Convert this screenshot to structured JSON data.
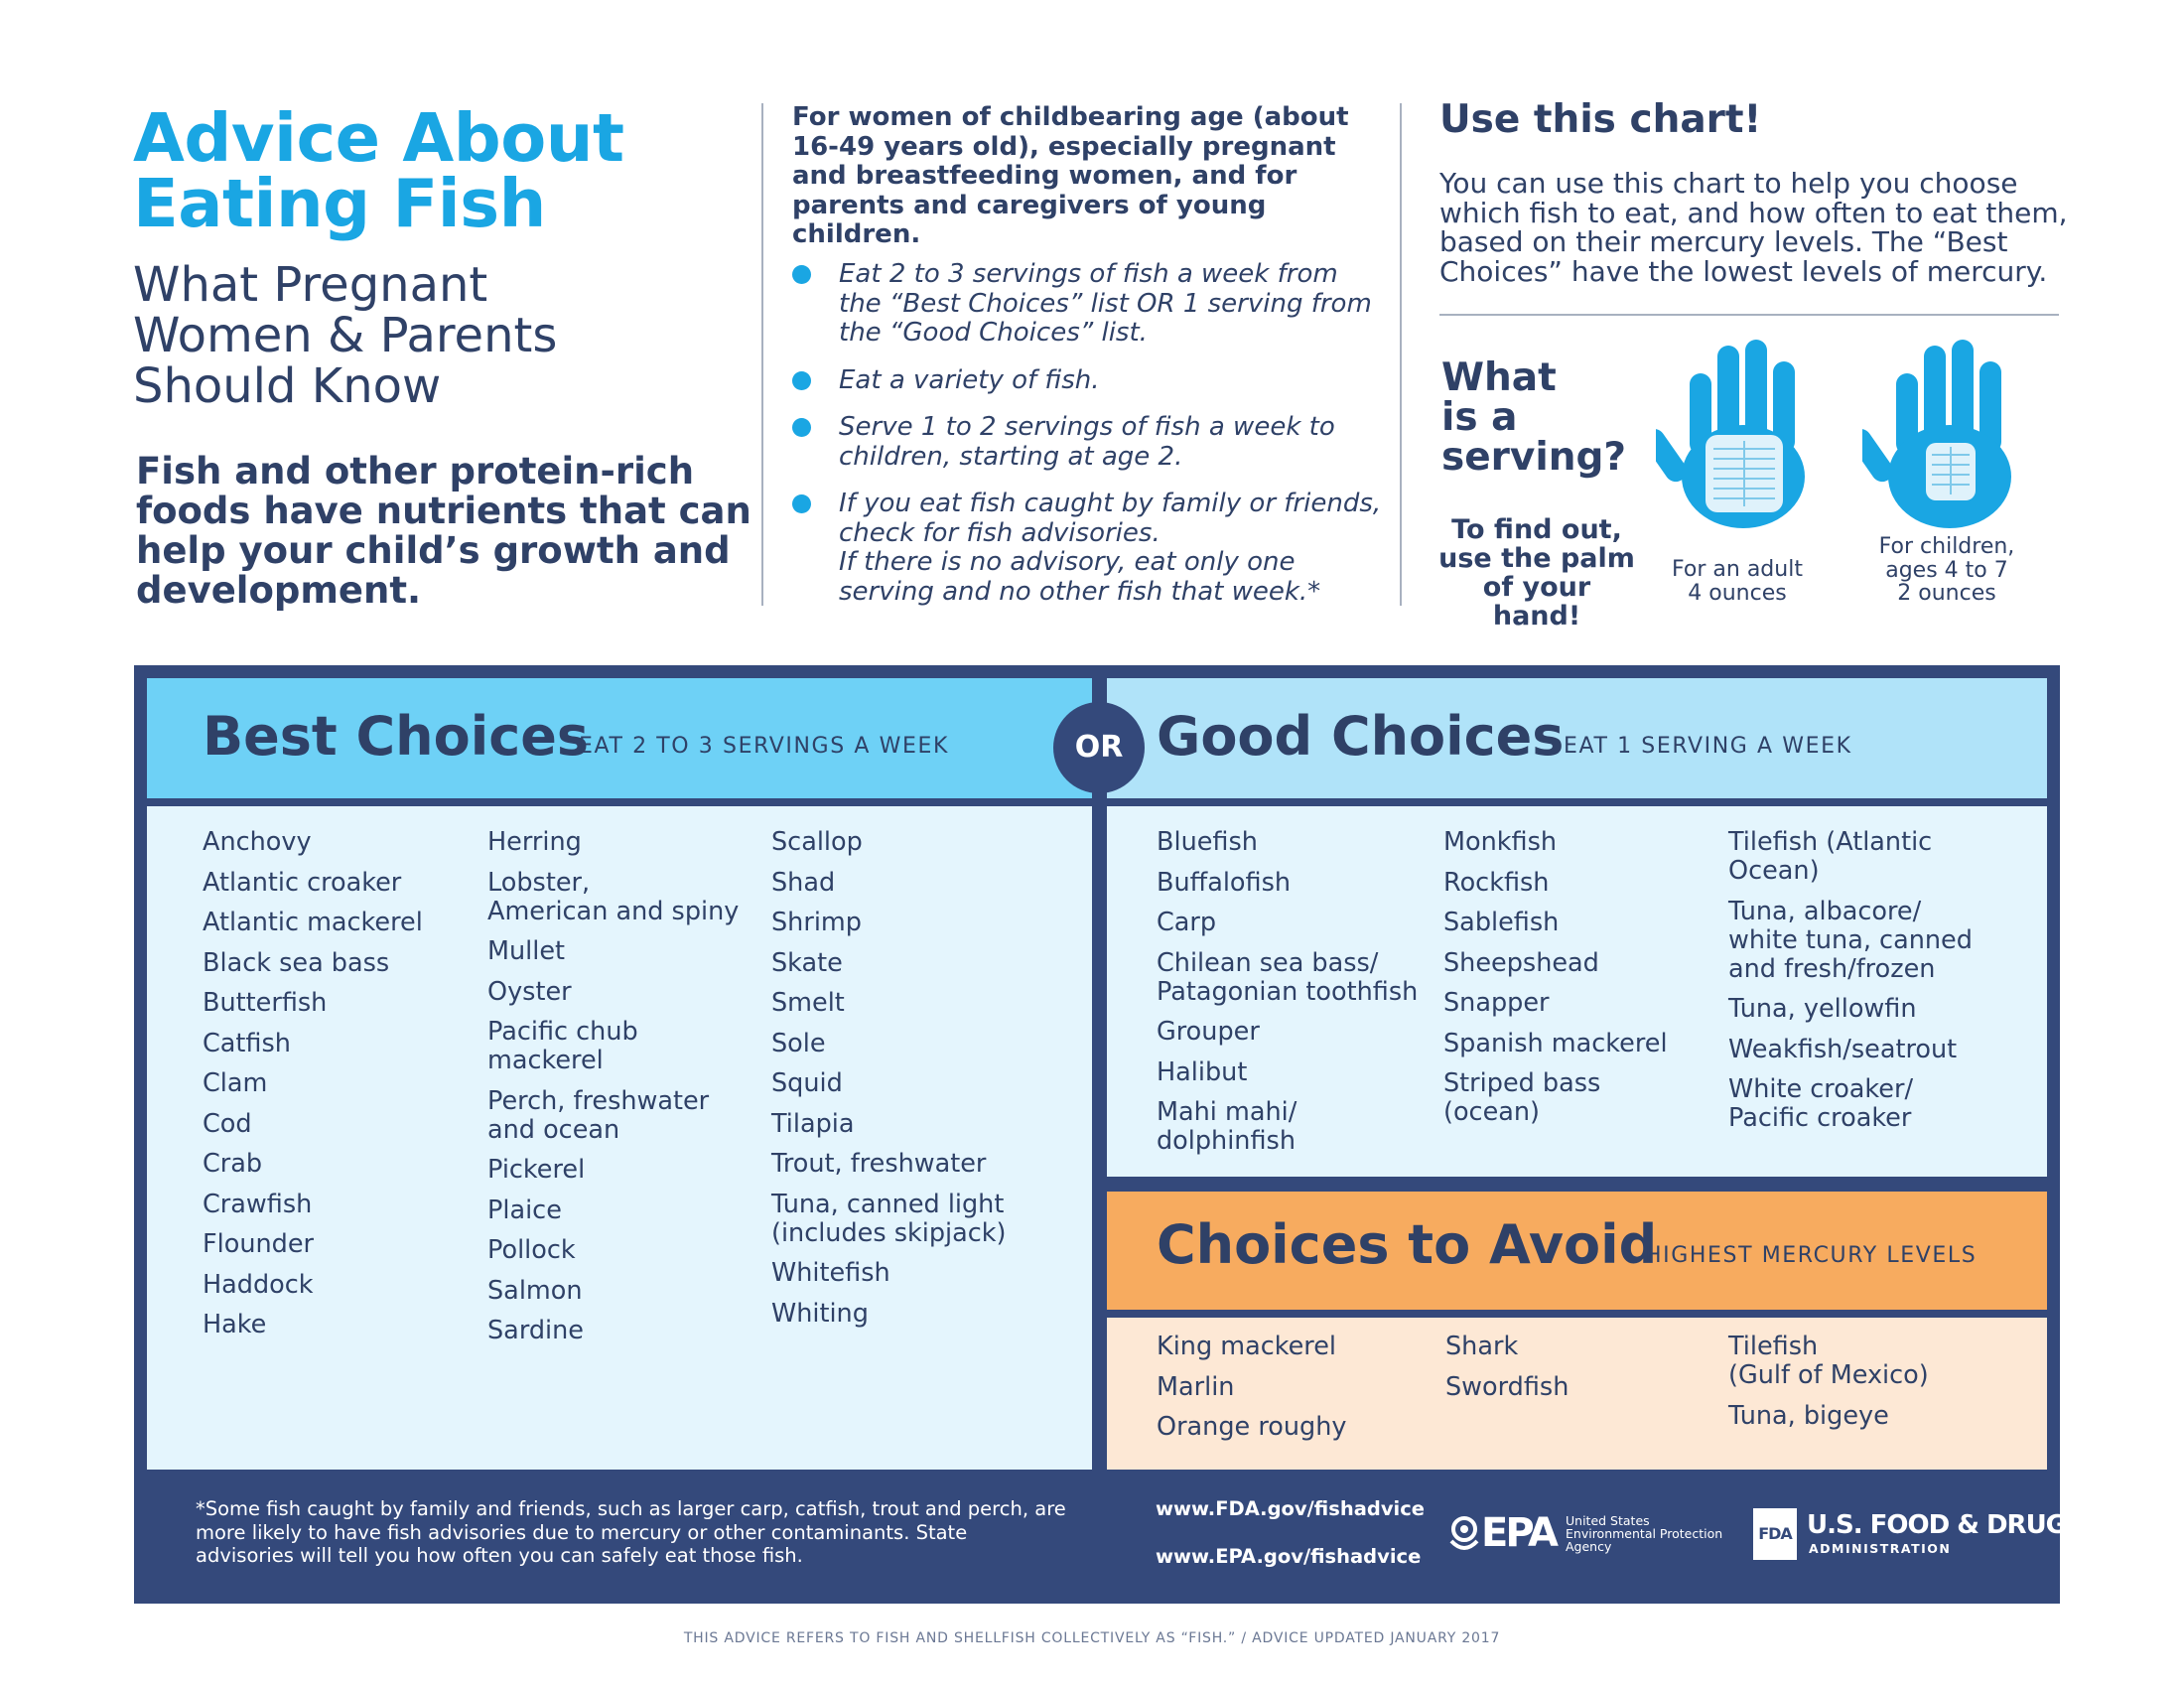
{
  "header": {
    "title_lines": [
      "Advice About",
      "Eating Fish"
    ],
    "subtitle_lines": [
      "What Pregnant",
      "Women & Parents",
      "Should Know"
    ],
    "intro": "Fish and other protein-rich foods have nutrients that can help your child’s growth and development."
  },
  "audience": {
    "heading": "For women of childbearing age (about 16-49 years old), especially pregnant and breastfeeding women, and for parents and caregivers of young children.",
    "bullets": [
      "Eat 2 to 3 servings of fish a week from the “Best Choices” list OR 1 serving from the “Good Choices” list.",
      "Eat a variety of fish.",
      "Serve 1 to 2 servings of fish a week to children, starting at age 2."
    ],
    "bullet4_line1": "If you eat fish caught by family or friends, check for fish advisories.",
    "bullet4_line2": "If there is no advisory, eat only one serving and no other fish that week.*"
  },
  "chart_help": {
    "heading": "Use this chart!",
    "text": "You can use this chart to help you choose which fish to eat, and how often to eat them, based on their mercury levels. The “Best Choices” have the lowest levels of mercury.",
    "serving_question": [
      "What",
      "is a",
      "serving?"
    ],
    "palm_text": [
      "To find out,",
      "use the palm",
      "of your hand!"
    ],
    "adult_caption": [
      "For an adult",
      "4 ounces"
    ],
    "child_caption": [
      "For children,",
      "ages 4 to 7",
      "2 ounces"
    ],
    "hand_color": "#1aa6e3"
  },
  "best": {
    "title": "Best Choices",
    "subtitle": "EAT 2 TO 3 SERVINGS A WEEK",
    "color": "#6ed1f6",
    "columns": [
      [
        "Anchovy",
        "Atlantic croaker",
        "Atlantic mackerel",
        "Black sea bass",
        "Butterfish",
        "Catfish",
        "Clam",
        "Cod",
        "Crab",
        "Crawfish",
        "Flounder",
        "Haddock",
        "Hake"
      ],
      [
        "Herring",
        "Lobster,\nAmerican and spiny",
        "Mullet",
        "Oyster",
        "Pacific chub\nmackerel",
        "Perch, freshwater\nand ocean",
        "Pickerel",
        "Plaice",
        "Pollock",
        "Salmon",
        "Sardine"
      ],
      [
        "Scallop",
        "Shad",
        "Shrimp",
        "Skate",
        "Smelt",
        "Sole",
        "Squid",
        "Tilapia",
        "Trout, freshwater",
        "Tuna, canned light\n(includes skipjack)",
        "Whitefish",
        "Whiting"
      ]
    ]
  },
  "or_label": "OR",
  "good": {
    "title": "Good Choices",
    "subtitle": "EAT 1 SERVING A WEEK",
    "color": "#b0e3f9",
    "columns": [
      [
        "Bluefish",
        "Buffalofish",
        "Carp",
        "Chilean sea bass/\nPatagonian toothfish",
        "Grouper",
        "Halibut",
        "Mahi mahi/\ndolphinfish"
      ],
      [
        "Monkfish",
        "Rockfish",
        "Sablefish",
        "Sheepshead",
        "Snapper",
        "Spanish mackerel",
        "Striped bass\n(ocean)"
      ],
      [
        "Tilefish (Atlantic\nOcean)",
        "Tuna, albacore/\nwhite tuna, canned\nand fresh/frozen",
        "Tuna, yellowfin",
        "Weakfish/seatrout",
        "White croaker/\nPacific croaker"
      ]
    ]
  },
  "avoid": {
    "title": "Choices to Avoid",
    "subtitle": "HIGHEST MERCURY LEVELS",
    "color": "#f7ab5f",
    "columns": [
      [
        "King mackerel",
        "Marlin",
        "Orange roughy"
      ],
      [
        "Shark",
        "Swordfish"
      ],
      [
        "Tilefish\n(Gulf of Mexico)",
        "Tuna, bigeye"
      ]
    ]
  },
  "footer": {
    "footnote": "*Some fish caught by family and friends, such as larger carp, catfish, trout and perch, are more likely to have fish advisories due to mercury or other contaminants. State advisories will tell you how often you can safely eat those fish.",
    "fda_url": "www.FDA.gov/fishadvice",
    "epa_url": "www.EPA.gov/fishadvice",
    "epa_logo_text": "EPA",
    "epa_name": [
      "United States",
      "Environmental Protection",
      "Agency"
    ],
    "fda_logo_text": "FDA",
    "fda_name": "U.S. FOOD & DRUG",
    "fda_admin": "ADMINISTRATION",
    "panel_color": "#34497b"
  },
  "bottom_note": "THIS ADVICE REFERS TO FISH AND SHELLFISH COLLECTIVELY AS “FISH.” / ADVICE UPDATED JANUARY 2017"
}
